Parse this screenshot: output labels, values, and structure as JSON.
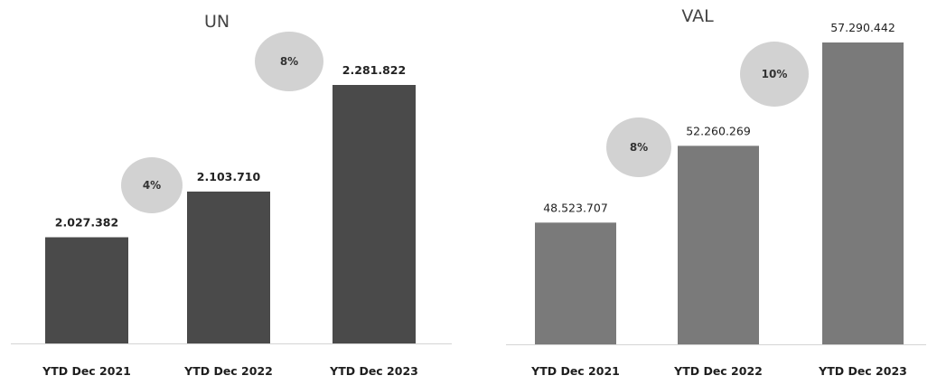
{
  "chart_data": [
    {
      "type": "bar",
      "title": "UN",
      "categories": [
        "YTD Dec 2021",
        "YTD Dec 2022",
        "YTD Dec 2023"
      ],
      "values": [
        2027382,
        2103710,
        2281822
      ],
      "value_labels": [
        "2.027.382",
        "2.103.710",
        "2.281.822"
      ],
      "growth_labels": [
        "4%",
        "8%"
      ],
      "ylim": [
        1850000,
        2300000
      ],
      "grid": false,
      "bar_color": "#4a4a4a",
      "badge_color": "#d2d2d2",
      "xlabel": "",
      "ylabel": ""
    },
    {
      "type": "bar",
      "title": "VAL",
      "categories": [
        "YTD Dec 2021",
        "YTD Dec 2022",
        "YTD Dec 2023"
      ],
      "values": [
        48523707,
        52260269,
        57290442
      ],
      "value_labels": [
        "48.523.707",
        "52.260.269",
        "57.290.442"
      ],
      "growth_labels": [
        "8%",
        "10%"
      ],
      "ylim": [
        42600000,
        58300000
      ],
      "grid": false,
      "bar_color": "#7a7a7a",
      "badge_color": "#d2d2d2",
      "xlabel": "",
      "ylabel": ""
    }
  ]
}
